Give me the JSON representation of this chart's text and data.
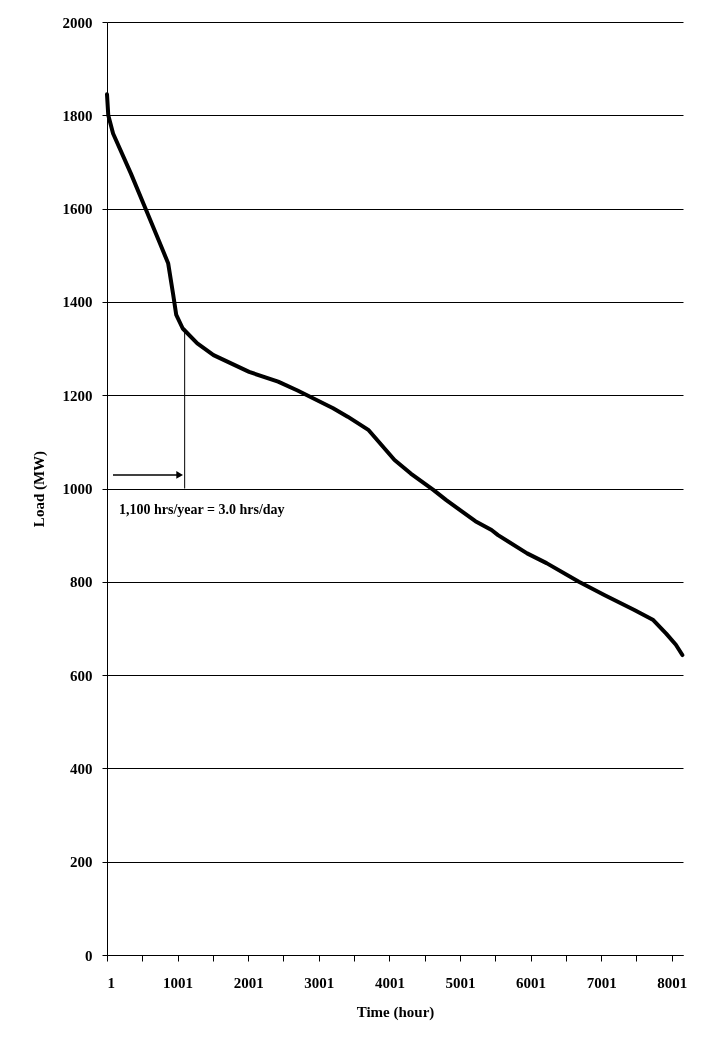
{
  "chart_data": {
    "type": "line",
    "xlabel": "Time (hour)",
    "ylabel": "Load (MW)",
    "x": [
      1,
      19,
      87,
      340,
      546,
      730,
      867,
      936,
      982,
      1074,
      1280,
      1510,
      2014,
      2425,
      2700,
      3204,
      3410,
      3708,
      4074,
      4304,
      4623,
      4807,
      5219,
      5448,
      5540,
      5952,
      6227,
      6685,
      7052,
      7464,
      7739,
      7922,
      8059,
      8151
    ],
    "series": [
      {
        "color": "#000000",
        "values": [
          1845,
          1800,
          1761,
          1675,
          1600,
          1533,
          1483,
          1418,
          1372,
          1343,
          1311,
          1286,
          1250,
          1229,
          1210,
          1172,
          1154,
          1125,
          1061,
          1032,
          997,
          975,
          930,
          911,
          900,
          861,
          840,
          800,
          771,
          740,
          718,
          689,
          665,
          643
        ]
      }
    ],
    "xlim": [
      1,
      8160
    ],
    "ylim": [
      0,
      2000
    ],
    "xticks": [
      1,
      {
        "value": 501,
        "label": null
      },
      1001,
      {
        "value": 1501,
        "label": null
      },
      2001,
      {
        "value": 2501,
        "label": null
      },
      3001,
      {
        "value": 3501,
        "label": null
      },
      4001,
      {
        "value": 4501,
        "label": null
      },
      5001,
      {
        "value": 5501,
        "label": null
      },
      6001,
      {
        "value": 6501,
        "label": null
      },
      7001,
      {
        "value": 7501,
        "label": null
      },
      8001
    ],
    "yticks": [
      0,
      200,
      400,
      600,
      800,
      1000,
      1200,
      1400,
      1600,
      1800,
      2000
    ],
    "grid": "y",
    "marker": "none",
    "line_style": "solid",
    "annotations": [
      {
        "text": "1,100 hrs/year = 3.0 hrs/day",
        "x": 1101,
        "y": 1343
      }
    ]
  }
}
